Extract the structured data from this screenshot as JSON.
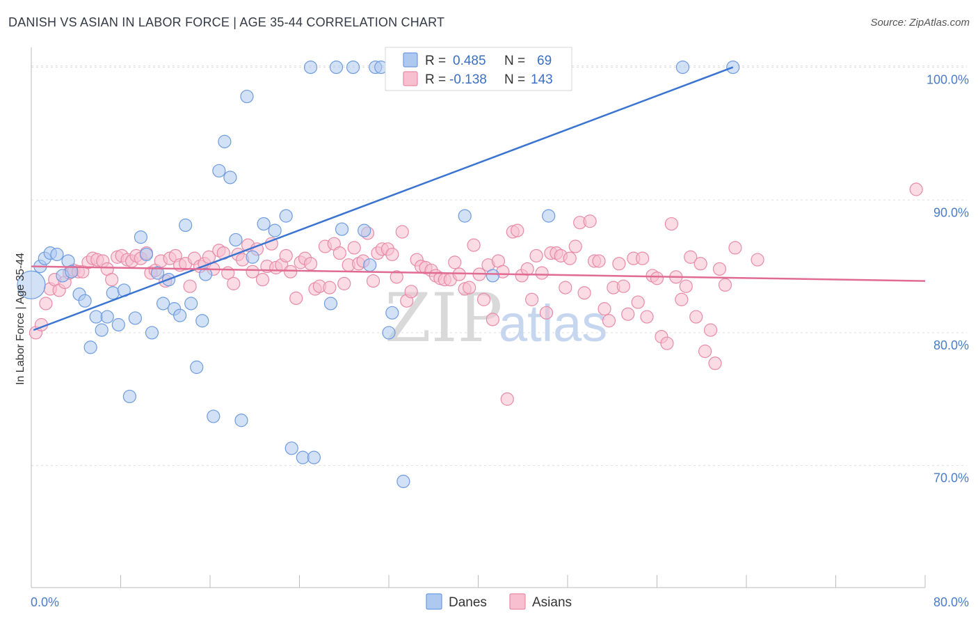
{
  "header": {
    "title": "DANISH VS ASIAN IN LABOR FORCE | AGE 35-44 CORRELATION CHART",
    "source": "Source: ZipAtlas.com"
  },
  "watermark": {
    "part1": "ZIP",
    "part2": "atlas"
  },
  "colors": {
    "danes_fill": "#aec9ef",
    "danes_stroke": "#6d9be0",
    "danes_line": "#3a74d2",
    "asians_fill": "#f7bfd0",
    "asians_stroke": "#e88aa7",
    "asians_line": "#e06b93",
    "grid": "#dddddd",
    "axis_label": "#4a7cc9"
  },
  "chart_data": {
    "type": "scatter",
    "title": "DANISH VS ASIAN IN LABOR FORCE | AGE 35-44 CORRELATION CHART",
    "ylabel": "In Labor Force | Age 35-44",
    "xlabel": "",
    "xlim": [
      0,
      80
    ],
    "ylim": [
      60.8,
      101.5
    ],
    "x_tick_labels": [
      "0.0%",
      "80.0%"
    ],
    "y_ticks": [
      70,
      80,
      90,
      100
    ],
    "y_tick_labels": [
      "70.0%",
      "80.0%",
      "90.0%",
      "100.0%"
    ],
    "grid": "horizontal dashed",
    "legend_placement": "top-center",
    "legend": [
      {
        "name": "Danes",
        "r_label": "R =",
        "r_value": "0.485",
        "n_label": "N =",
        "n_value": "69"
      },
      {
        "name": "Asians",
        "r_label": "R =",
        "r_value": "-0.138",
        "n_label": "N =",
        "n_value": "143"
      }
    ],
    "series": [
      {
        "name": "Danes",
        "trend": {
          "x": [
            0.2,
            62.8
          ],
          "y": [
            80.2,
            100.0
          ]
        },
        "points": [
          [
            0.0,
            83.6
          ],
          [
            0.8,
            85.0
          ],
          [
            1.2,
            85.6
          ],
          [
            1.7,
            86.0
          ],
          [
            2.3,
            85.9
          ],
          [
            2.8,
            84.3
          ],
          [
            3.3,
            85.4
          ],
          [
            3.6,
            84.6
          ],
          [
            4.3,
            82.9
          ],
          [
            4.8,
            82.4
          ],
          [
            5.3,
            78.9
          ],
          [
            5.8,
            81.2
          ],
          [
            6.3,
            80.2
          ],
          [
            6.8,
            81.2
          ],
          [
            7.3,
            83.0
          ],
          [
            7.8,
            80.6
          ],
          [
            8.3,
            83.2
          ],
          [
            8.8,
            75.2
          ],
          [
            9.3,
            81.1
          ],
          [
            9.8,
            87.2
          ],
          [
            10.3,
            85.9
          ],
          [
            10.8,
            80.0
          ],
          [
            11.3,
            84.5
          ],
          [
            11.8,
            82.2
          ],
          [
            12.3,
            84.0
          ],
          [
            12.8,
            81.8
          ],
          [
            13.3,
            81.3
          ],
          [
            13.8,
            88.1
          ],
          [
            14.3,
            82.2
          ],
          [
            14.8,
            77.4
          ],
          [
            15.3,
            80.9
          ],
          [
            15.6,
            84.4
          ],
          [
            16.3,
            73.7
          ],
          [
            16.8,
            92.2
          ],
          [
            17.3,
            94.4
          ],
          [
            17.8,
            91.7
          ],
          [
            18.3,
            87.0
          ],
          [
            18.8,
            73.4
          ],
          [
            19.3,
            97.8
          ],
          [
            19.8,
            85.7
          ],
          [
            20.8,
            88.2
          ],
          [
            21.8,
            87.7
          ],
          [
            22.8,
            88.8
          ],
          [
            23.3,
            71.3
          ],
          [
            24.3,
            70.6
          ],
          [
            25.0,
            100.0
          ],
          [
            25.3,
            70.6
          ],
          [
            26.8,
            82.2
          ],
          [
            27.3,
            100.0
          ],
          [
            27.8,
            87.8
          ],
          [
            28.8,
            100.0
          ],
          [
            29.8,
            87.7
          ],
          [
            30.3,
            85.1
          ],
          [
            30.8,
            100.0
          ],
          [
            31.3,
            100.0
          ],
          [
            32.0,
            80.0
          ],
          [
            32.3,
            81.5
          ],
          [
            33.3,
            68.8
          ],
          [
            34.3,
            100.0
          ],
          [
            35.3,
            100.0
          ],
          [
            36.3,
            100.0
          ],
          [
            37.3,
            100.0
          ],
          [
            38.8,
            88.8
          ],
          [
            39.8,
            100.0
          ],
          [
            41.3,
            84.3
          ],
          [
            44.3,
            100.0
          ],
          [
            46.3,
            88.8
          ],
          [
            58.3,
            100.0
          ],
          [
            62.8,
            100.0
          ]
        ]
      },
      {
        "name": "Asians",
        "trend": {
          "x": [
            0.0,
            80.0
          ],
          "y": [
            85.0,
            83.9
          ]
        },
        "points": [
          [
            0.4,
            80.0
          ],
          [
            0.9,
            80.6
          ],
          [
            1.3,
            82.2
          ],
          [
            1.7,
            83.3
          ],
          [
            2.1,
            84.0
          ],
          [
            2.5,
            83.2
          ],
          [
            3.0,
            83.8
          ],
          [
            3.4,
            84.5
          ],
          [
            3.8,
            84.7
          ],
          [
            4.2,
            84.6
          ],
          [
            4.6,
            84.6
          ],
          [
            5.1,
            85.3
          ],
          [
            5.5,
            85.6
          ],
          [
            5.9,
            85.5
          ],
          [
            6.4,
            85.4
          ],
          [
            6.8,
            84.8
          ],
          [
            7.2,
            84.0
          ],
          [
            7.7,
            85.7
          ],
          [
            8.1,
            85.8
          ],
          [
            8.6,
            85.5
          ],
          [
            9.0,
            85.4
          ],
          [
            9.4,
            85.8
          ],
          [
            9.8,
            85.6
          ],
          [
            10.3,
            86.0
          ],
          [
            10.7,
            84.5
          ],
          [
            11.1,
            84.7
          ],
          [
            11.6,
            85.4
          ],
          [
            12.0,
            83.9
          ],
          [
            12.4,
            85.6
          ],
          [
            12.9,
            85.8
          ],
          [
            13.3,
            85.1
          ],
          [
            13.8,
            85.2
          ],
          [
            14.2,
            83.5
          ],
          [
            14.6,
            85.6
          ],
          [
            15.1,
            85.0
          ],
          [
            15.5,
            85.2
          ],
          [
            15.9,
            85.7
          ],
          [
            16.3,
            84.8
          ],
          [
            16.8,
            86.2
          ],
          [
            17.2,
            86.0
          ],
          [
            17.6,
            84.5
          ],
          [
            18.1,
            83.7
          ],
          [
            18.5,
            85.9
          ],
          [
            18.9,
            85.5
          ],
          [
            19.4,
            86.6
          ],
          [
            19.8,
            84.6
          ],
          [
            20.2,
            86.3
          ],
          [
            20.7,
            84.0
          ],
          [
            21.1,
            85.0
          ],
          [
            21.5,
            86.7
          ],
          [
            21.9,
            84.9
          ],
          [
            22.4,
            85.1
          ],
          [
            22.8,
            85.8
          ],
          [
            23.2,
            84.6
          ],
          [
            23.7,
            82.6
          ],
          [
            24.1,
            85.3
          ],
          [
            24.5,
            85.6
          ],
          [
            25.0,
            85.2
          ],
          [
            25.4,
            83.3
          ],
          [
            25.8,
            83.5
          ],
          [
            26.3,
            86.5
          ],
          [
            26.7,
            83.4
          ],
          [
            27.1,
            86.7
          ],
          [
            27.6,
            86.0
          ],
          [
            28.0,
            83.7
          ],
          [
            28.4,
            85.1
          ],
          [
            28.9,
            86.4
          ],
          [
            29.3,
            85.2
          ],
          [
            29.7,
            85.4
          ],
          [
            30.1,
            87.5
          ],
          [
            30.6,
            83.9
          ],
          [
            31.0,
            86.0
          ],
          [
            31.4,
            86.3
          ],
          [
            31.9,
            86.3
          ],
          [
            32.3,
            85.9
          ],
          [
            32.7,
            84.2
          ],
          [
            33.2,
            87.6
          ],
          [
            33.6,
            82.4
          ],
          [
            34.0,
            83.1
          ],
          [
            34.5,
            85.5
          ],
          [
            34.9,
            85.0
          ],
          [
            35.3,
            84.9
          ],
          [
            35.8,
            84.7
          ],
          [
            36.2,
            84.3
          ],
          [
            36.6,
            84.1
          ],
          [
            37.0,
            84.0
          ],
          [
            37.5,
            84.0
          ],
          [
            37.9,
            85.3
          ],
          [
            38.3,
            84.4
          ],
          [
            38.8,
            83.3
          ],
          [
            39.2,
            83.4
          ],
          [
            39.6,
            86.6
          ],
          [
            40.1,
            84.4
          ],
          [
            40.5,
            82.5
          ],
          [
            40.9,
            85.1
          ],
          [
            41.3,
            81.0
          ],
          [
            41.8,
            85.4
          ],
          [
            42.2,
            84.6
          ],
          [
            42.6,
            75.0
          ],
          [
            43.1,
            87.6
          ],
          [
            43.5,
            87.7
          ],
          [
            43.9,
            84.3
          ],
          [
            44.4,
            84.8
          ],
          [
            44.8,
            82.5
          ],
          [
            45.2,
            85.8
          ],
          [
            45.7,
            84.5
          ],
          [
            46.1,
            81.5
          ],
          [
            46.5,
            86.0
          ],
          [
            47.0,
            86.0
          ],
          [
            47.4,
            85.8
          ],
          [
            47.8,
            83.4
          ],
          [
            48.2,
            85.6
          ],
          [
            48.7,
            86.5
          ],
          [
            49.1,
            88.3
          ],
          [
            49.5,
            83.0
          ],
          [
            50.0,
            88.4
          ],
          [
            50.4,
            85.4
          ],
          [
            50.8,
            85.4
          ],
          [
            51.3,
            81.8
          ],
          [
            51.7,
            80.9
          ],
          [
            52.1,
            83.4
          ],
          [
            52.6,
            85.2
          ],
          [
            53.0,
            83.5
          ],
          [
            53.4,
            81.4
          ],
          [
            53.9,
            85.6
          ],
          [
            54.3,
            82.3
          ],
          [
            54.7,
            85.6
          ],
          [
            55.1,
            81.2
          ],
          [
            55.6,
            84.3
          ],
          [
            56.0,
            84.1
          ],
          [
            56.4,
            79.7
          ],
          [
            56.9,
            79.2
          ],
          [
            57.3,
            88.2
          ],
          [
            57.7,
            84.2
          ],
          [
            58.2,
            82.5
          ],
          [
            58.6,
            83.5
          ],
          [
            59.0,
            85.7
          ],
          [
            59.5,
            81.2
          ],
          [
            59.9,
            85.2
          ],
          [
            60.3,
            78.6
          ],
          [
            60.8,
            80.2
          ],
          [
            61.2,
            77.7
          ],
          [
            61.6,
            84.8
          ],
          [
            62.1,
            83.6
          ],
          [
            63.0,
            86.4
          ],
          [
            65.0,
            85.5
          ],
          [
            79.2,
            90.8
          ]
        ]
      }
    ]
  }
}
